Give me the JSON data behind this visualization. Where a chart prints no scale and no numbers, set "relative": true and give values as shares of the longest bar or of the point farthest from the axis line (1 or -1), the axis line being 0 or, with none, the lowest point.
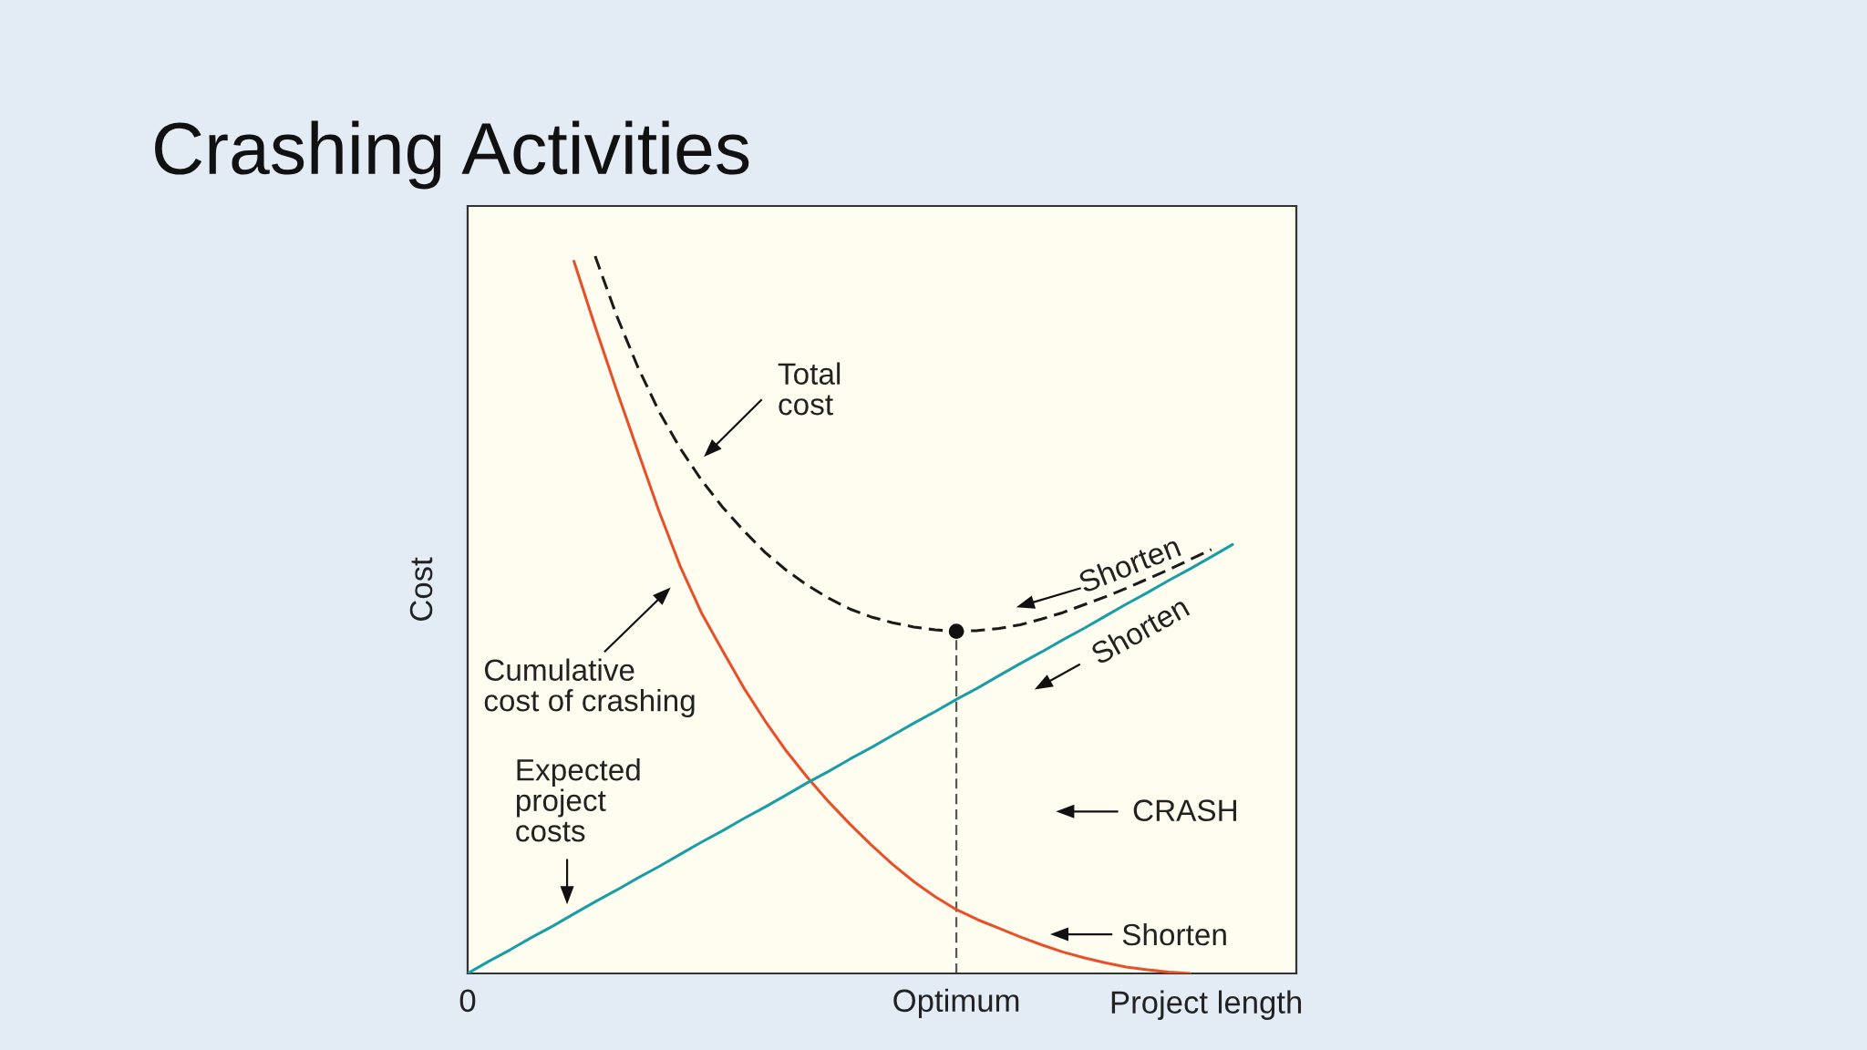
{
  "chart_data": {
    "type": "line",
    "title": "Crashing Activities",
    "xlabel": "Project length",
    "ylabel": "Cost",
    "relative": true,
    "tick_labels": "x",
    "categories": [
      "0",
      null,
      null,
      null,
      null,
      null,
      null,
      null,
      null,
      null,
      null,
      null,
      null,
      null,
      null,
      null,
      null,
      null,
      null,
      null,
      null,
      null,
      null,
      "Optimum",
      null,
      null,
      null,
      null,
      null,
      null,
      null,
      null,
      null,
      null,
      null,
      null,
      null,
      null,
      null,
      null
    ],
    "series": [
      {
        "color": "#1a1a1a",
        "line_style": "dashed",
        "values": [
          null,
          null,
          null,
          null,
          null,
          null,
          1.0,
          0.918,
          0.846,
          0.784,
          0.732,
          0.688,
          0.65,
          0.617,
          0.587,
          0.562,
          0.541,
          0.523,
          0.508,
          0.497,
          0.489,
          0.483,
          0.479,
          0.477,
          0.478,
          0.481,
          0.486,
          0.494,
          0.503,
          0.514,
          0.525,
          0.537,
          0.55,
          0.563,
          0.577,
          0.591,
          null,
          null,
          null,
          null
        ]
      },
      {
        "color": "#e8502a",
        "values": [
          null,
          null,
          null,
          null,
          null,
          0.993,
          0.902,
          0.814,
          0.729,
          0.645,
          0.568,
          0.503,
          0.45,
          0.398,
          0.352,
          0.31,
          0.273,
          0.239,
          0.208,
          0.179,
          0.152,
          0.128,
          0.107,
          0.089,
          0.075,
          0.063,
          0.051,
          0.04,
          0.03,
          0.022,
          0.015,
          0.009,
          0.005,
          0.002,
          0.0,
          null,
          null,
          null,
          null,
          null
        ]
      },
      {
        "color": "#1a9ea6",
        "values": [
          0.0,
          0.017,
          0.033,
          0.05,
          0.066,
          0.083,
          0.1,
          0.116,
          0.133,
          0.149,
          0.166,
          0.183,
          0.199,
          0.216,
          0.232,
          0.249,
          0.266,
          0.282,
          0.299,
          0.315,
          0.332,
          0.349,
          0.365,
          0.382,
          0.398,
          0.415,
          0.432,
          0.448,
          0.465,
          0.481,
          0.498,
          0.515,
          0.531,
          0.548,
          0.564,
          0.581,
          0.598,
          null,
          null,
          null
        ]
      },
      {
        "type": "lollipop",
        "color": "#111111",
        "marker": "circle",
        "line_style": "dashed",
        "values": [
          null,
          null,
          null,
          null,
          null,
          null,
          null,
          null,
          null,
          null,
          null,
          null,
          null,
          null,
          null,
          null,
          null,
          null,
          null,
          null,
          null,
          null,
          null,
          0.477,
          null,
          null,
          null,
          null,
          null,
          null,
          null,
          null,
          null,
          null,
          null,
          null,
          null,
          null,
          null,
          null
        ]
      }
    ],
    "annotations": [
      "Total\ncost",
      "Cumulative\ncost of crashing",
      "Expected\nproject\ncosts",
      "Shorten",
      "Shorten",
      "CRASH",
      "Shorten"
    ]
  }
}
